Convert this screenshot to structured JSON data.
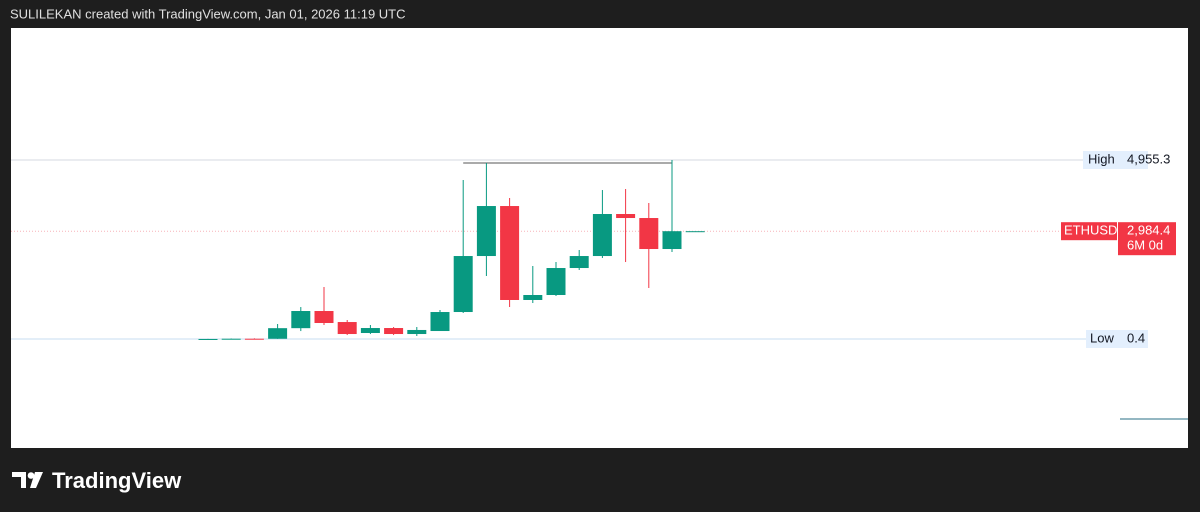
{
  "header": "SULILEKAN created with TradingView.com, Jan 01, 2026 11:19 UTC",
  "brand": "TradingView",
  "chart_data": {
    "type": "candlestick",
    "up_color": "#089981",
    "down_color": "#f23645",
    "ylim": [
      -3017,
      8609
    ],
    "open": [
      0.7,
      1,
      8,
      7,
      300,
      775,
      470,
      166,
      304,
      138,
      221,
      747,
      2297,
      3681,
      1080,
      1218,
      1965,
      2297,
      3460,
      3349,
      2491,
      2984.4
    ],
    "high": [
      3,
      15,
      21,
      415,
      885,
      1439,
      526,
      388,
      332,
      332,
      803,
      4401,
      4872,
      3903,
      2021,
      2131,
      2464,
      4124,
      4152,
      3765,
      4955.3,
      2984.4
    ],
    "low": [
      0.4,
      0.9,
      6,
      5,
      220,
      388,
      110,
      138,
      110,
      83,
      221,
      720,
      1744,
      886,
      996,
      1190,
      1910,
      2242,
      2131,
      1412,
      2408,
      2984.4
    ],
    "close": [
      1,
      8,
      7,
      300,
      775,
      443,
      138,
      304,
      138,
      250,
      747,
      2297,
      3681,
      1080,
      1218,
      1965,
      2297,
      3460,
      3349,
      2491,
      2984.4,
      2984.4
    ],
    "markers": [
      {
        "name": "High",
        "value": 4955.3,
        "value_label": "4,955.3"
      },
      {
        "name": "Low",
        "value": 0.4
      }
    ],
    "last": {
      "name": "ETHUSD",
      "value": 2984.4,
      "value_label": "2,984.4",
      "countdown": "6M 0d"
    }
  }
}
